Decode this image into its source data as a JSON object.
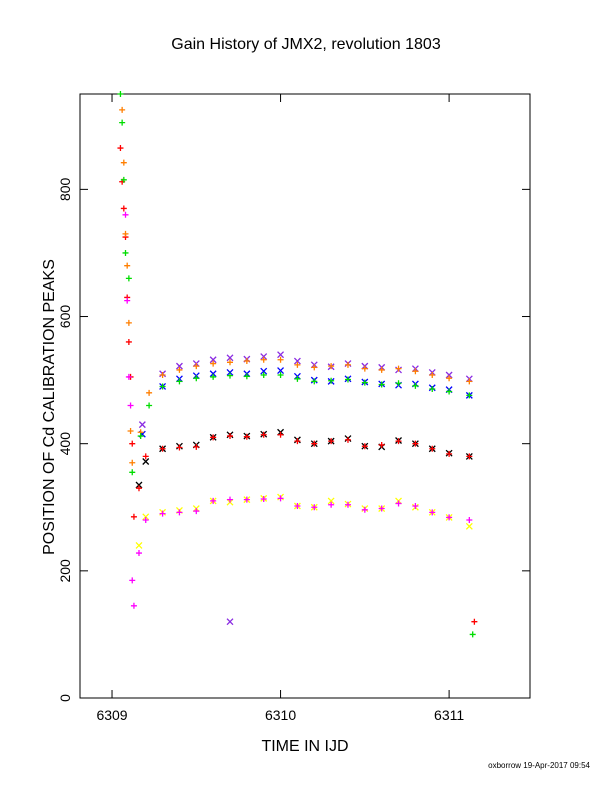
{
  "chart_data": {
    "type": "scatter",
    "title": "Gain History of JMX2, revolution 1803",
    "xlabel": "TIME IN IJD",
    "ylabel": "POSITION OF Cd CALIBRATION PEAKS",
    "xlim": [
      6308.81,
      6311.48
    ],
    "ylim": [
      0,
      950
    ],
    "xticks": [
      6309,
      6310,
      6311
    ],
    "yticks": [
      0,
      200,
      400,
      600,
      800
    ],
    "grid": false,
    "legend": "none",
    "series": [
      {
        "color": "#8a2be2",
        "marker": "x",
        "x": [
          6309.18,
          6309.3,
          6309.4,
          6309.5,
          6309.6,
          6309.7,
          6309.8,
          6309.9,
          6310.0,
          6310.1,
          6310.2,
          6310.3,
          6310.4,
          6310.5,
          6310.6,
          6310.7,
          6310.8,
          6310.9,
          6311.0,
          6311.12,
          6309.7
        ],
        "y": [
          430,
          510,
          522,
          526,
          532,
          535,
          533,
          537,
          540,
          530,
          524,
          521,
          526,
          522,
          520,
          516,
          518,
          512,
          508,
          502,
          120
        ]
      },
      {
        "color": "#0000ff",
        "marker": "x",
        "x": [
          6309.18,
          6309.3,
          6309.4,
          6309.5,
          6309.6,
          6309.7,
          6309.8,
          6309.9,
          6310.0,
          6310.1,
          6310.2,
          6310.3,
          6310.4,
          6310.5,
          6310.6,
          6310.7,
          6310.8,
          6310.9,
          6311.0,
          6311.12
        ],
        "y": [
          415,
          490,
          502,
          507,
          510,
          512,
          510,
          514,
          515,
          506,
          500,
          498,
          502,
          497,
          494,
          492,
          494,
          488,
          485,
          476
        ]
      },
      {
        "color": "#ff7f00",
        "marker": "+",
        "x": [
          6309.17,
          6309.22,
          6309.3,
          6309.4,
          6309.5,
          6309.6,
          6309.7,
          6309.8,
          6309.9,
          6310.0,
          6310.1,
          6310.2,
          6310.3,
          6310.4,
          6310.5,
          6310.6,
          6310.7,
          6310.8,
          6310.9,
          6311.0,
          6311.12
        ],
        "y": [
          418,
          480,
          508,
          516,
          522,
          526,
          528,
          530,
          532,
          532,
          524,
          520,
          522,
          524,
          518,
          516,
          518,
          514,
          508,
          503,
          498
        ]
      },
      {
        "color": "#00dd00",
        "marker": "+",
        "x": [
          6309.17,
          6309.22,
          6309.3,
          6309.4,
          6309.5,
          6309.6,
          6309.7,
          6309.8,
          6309.9,
          6310.0,
          6310.1,
          6310.2,
          6310.3,
          6310.4,
          6310.5,
          6310.6,
          6310.7,
          6310.8,
          6310.9,
          6311.0,
          6311.12
        ],
        "y": [
          412,
          460,
          490,
          498,
          503,
          505,
          507,
          506,
          508,
          508,
          502,
          498,
          499,
          501,
          496,
          493,
          495,
          491,
          486,
          482,
          476
        ]
      },
      {
        "color": "#000000",
        "marker": "x",
        "x": [
          6309.16,
          6309.2,
          6309.3,
          6309.4,
          6309.5,
          6309.6,
          6309.7,
          6309.8,
          6309.9,
          6310.0,
          6310.1,
          6310.2,
          6310.3,
          6310.4,
          6310.5,
          6310.6,
          6310.7,
          6310.8,
          6310.9,
          6311.0,
          6311.12
        ],
        "y": [
          335,
          372,
          392,
          396,
          398,
          410,
          414,
          412,
          415,
          418,
          406,
          400,
          404,
          408,
          396,
          395,
          405,
          400,
          392,
          385,
          380
        ]
      },
      {
        "color": "#ff0000",
        "marker": "+",
        "x": [
          6309.16,
          6309.2,
          6309.3,
          6309.4,
          6309.5,
          6309.6,
          6309.7,
          6309.8,
          6309.9,
          6310.0,
          6310.1,
          6310.2,
          6310.3,
          6310.4,
          6310.5,
          6310.6,
          6310.7,
          6310.8,
          6310.9,
          6311.0,
          6311.12
        ],
        "y": [
          330,
          380,
          392,
          394,
          395,
          410,
          412,
          411,
          414,
          414,
          404,
          400,
          404,
          406,
          396,
          398,
          404,
          400,
          392,
          384,
          380
        ]
      },
      {
        "color": "#ffff00",
        "marker": "x",
        "x": [
          6309.16,
          6309.2,
          6309.3,
          6309.4,
          6309.5,
          6309.6,
          6309.7,
          6309.8,
          6309.9,
          6310.0,
          6310.1,
          6310.2,
          6310.3,
          6310.4,
          6310.5,
          6310.6,
          6310.7,
          6310.8,
          6310.9,
          6311.0,
          6311.12
        ],
        "y": [
          240,
          285,
          292,
          295,
          298,
          310,
          308,
          312,
          314,
          316,
          302,
          300,
          310,
          305,
          298,
          298,
          310,
          300,
          292,
          284,
          270
        ]
      },
      {
        "color": "#ff00ff",
        "marker": "+",
        "x": [
          6309.16,
          6309.2,
          6309.3,
          6309.4,
          6309.5,
          6309.6,
          6309.7,
          6309.8,
          6309.9,
          6310.0,
          6310.1,
          6310.2,
          6310.3,
          6310.4,
          6310.5,
          6310.6,
          6310.7,
          6310.8,
          6310.9,
          6311.0,
          6311.12
        ],
        "y": [
          228,
          280,
          290,
          292,
          294,
          310,
          312,
          312,
          313,
          314,
          302,
          300,
          304,
          304,
          296,
          298,
          306,
          302,
          292,
          284,
          280
        ]
      },
      {
        "color": "#ff0000",
        "marker": "+",
        "x": [
          6309.05,
          6309.06,
          6309.07,
          6309.08,
          6309.09,
          6309.1,
          6309.11,
          6309.12,
          6309.13,
          6311.15
        ],
        "y": [
          865,
          812,
          770,
          725,
          630,
          560,
          505,
          400,
          285,
          120
        ]
      },
      {
        "color": "#ff7f00",
        "marker": "+",
        "x": [
          6309.06,
          6309.07,
          6309.08,
          6309.09,
          6309.1,
          6309.11,
          6309.12
        ],
        "y": [
          925,
          842,
          730,
          680,
          590,
          420,
          370
        ]
      },
      {
        "color": "#00dd00",
        "marker": "+",
        "x": [
          6309.05,
          6309.06,
          6309.07,
          6309.08,
          6309.1,
          6309.12,
          6311.14
        ],
        "y": [
          950,
          905,
          815,
          700,
          660,
          355,
          100
        ]
      },
      {
        "color": "#ff00ff",
        "marker": "+",
        "x": [
          6309.08,
          6309.09,
          6309.1,
          6309.11,
          6309.12,
          6309.13
        ],
        "y": [
          760,
          625,
          505,
          460,
          185,
          145
        ]
      }
    ]
  },
  "footer_text": "oxborrow 19-Apr-2017 09:54"
}
